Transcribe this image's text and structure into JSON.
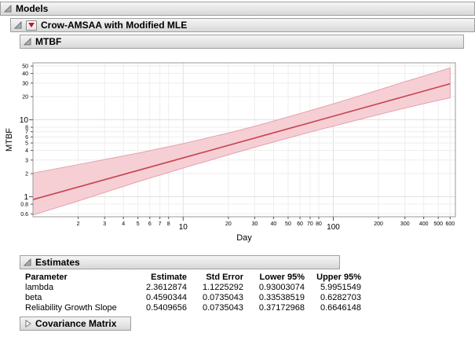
{
  "outline": {
    "models": {
      "title": "Models"
    },
    "model": {
      "title": "Crow-AMSAA with Modified MLE"
    },
    "mtbf": {
      "title": "MTBF"
    },
    "estimates": {
      "title": "Estimates"
    },
    "covariance": {
      "title": "Covariance Matrix"
    }
  },
  "chart_data": {
    "type": "line",
    "title": "",
    "xlabel": "Day",
    "ylabel": "MTBF",
    "xscale": "log",
    "yscale": "log",
    "xlim": [
      1,
      650
    ],
    "ylim": [
      0.55,
      55
    ],
    "grid": true,
    "legend": "none",
    "x_ticks": [
      {
        "value": 2,
        "label": "2",
        "major": false
      },
      {
        "value": 3,
        "label": "3",
        "major": false
      },
      {
        "value": 4,
        "label": "4",
        "major": false
      },
      {
        "value": 5,
        "label": "5",
        "major": false
      },
      {
        "value": 6,
        "label": "6",
        "major": false
      },
      {
        "value": 7,
        "label": "7",
        "major": false
      },
      {
        "value": 8,
        "label": "8",
        "major": false
      },
      {
        "value": 10,
        "label": "10",
        "major": true
      },
      {
        "value": 20,
        "label": "20",
        "major": false
      },
      {
        "value": 30,
        "label": "30",
        "major": false
      },
      {
        "value": 40,
        "label": "40",
        "major": false
      },
      {
        "value": 50,
        "label": "50",
        "major": false
      },
      {
        "value": 60,
        "label": "60",
        "major": false
      },
      {
        "value": 70,
        "label": "70",
        "major": false
      },
      {
        "value": 80,
        "label": "80",
        "major": false
      },
      {
        "value": 100,
        "label": "100",
        "major": true
      },
      {
        "value": 200,
        "label": "200",
        "major": false
      },
      {
        "value": 300,
        "label": "300",
        "major": false
      },
      {
        "value": 400,
        "label": "400",
        "major": false
      },
      {
        "value": 500,
        "label": "500",
        "major": false
      },
      {
        "value": 600,
        "label": "600",
        "major": false
      }
    ],
    "y_ticks": [
      {
        "value": 0.6,
        "label": "0.6",
        "major": false
      },
      {
        "value": 0.8,
        "label": "0.8",
        "major": false
      },
      {
        "value": 1,
        "label": "1",
        "major": true
      },
      {
        "value": 2,
        "label": "2",
        "major": false
      },
      {
        "value": 3,
        "label": "3",
        "major": false
      },
      {
        "value": 4,
        "label": "4",
        "major": false
      },
      {
        "value": 5,
        "label": "5",
        "major": false
      },
      {
        "value": 6,
        "label": "6",
        "major": false
      },
      {
        "value": 7,
        "label": "7",
        "major": false
      },
      {
        "value": 8,
        "label": "8",
        "major": false
      },
      {
        "value": 10,
        "label": "10",
        "major": true
      },
      {
        "value": 20,
        "label": "20",
        "major": false
      },
      {
        "value": 30,
        "label": "30",
        "major": false
      },
      {
        "value": 40,
        "label": "40",
        "major": false
      },
      {
        "value": 50,
        "label": "50",
        "major": false
      }
    ],
    "series": [
      {
        "name": "MTBF fit line",
        "color": "#c8434f",
        "x": [
          1,
          600
        ],
        "y": [
          0.92,
          29.4
        ]
      }
    ],
    "band": {
      "name": "95% confidence band",
      "fill": "#f6cfd5",
      "edge": "#e4a2ac",
      "x": [
        1,
        2,
        3,
        5,
        8,
        10,
        20,
        30,
        50,
        80,
        100,
        200,
        300,
        450,
        600
      ],
      "lower": [
        0.58,
        0.88,
        1.14,
        1.57,
        2.07,
        2.36,
        3.51,
        4.4,
        5.8,
        7.41,
        8.28,
        11.7,
        14.2,
        17.1,
        19.3
      ],
      "upper": [
        2.03,
        2.62,
        3.05,
        3.69,
        4.48,
        4.91,
        6.73,
        8.25,
        10.9,
        14.2,
        16.1,
        24.4,
        31.3,
        39.7,
        47.3
      ]
    },
    "colors": {
      "grid_minor": "#eeeeee",
      "grid_major": "#e0e0e0",
      "frame": "#9a9a9a",
      "tick": "#555555"
    }
  },
  "estimates_table": {
    "columns": [
      "Parameter",
      "Estimate",
      "Std Error",
      "Lower 95%",
      "Upper 95%"
    ],
    "rows": [
      [
        "lambda",
        "2.3612874",
        "1.1225292",
        "0.93003074",
        "5.9951549"
      ],
      [
        "beta",
        "0.4590344",
        "0.0735043",
        "0.33538519",
        "0.6282703"
      ],
      [
        "Reliability Growth Slope",
        "0.5409656",
        "0.0735043",
        "0.37172968",
        "0.6646148"
      ]
    ]
  }
}
